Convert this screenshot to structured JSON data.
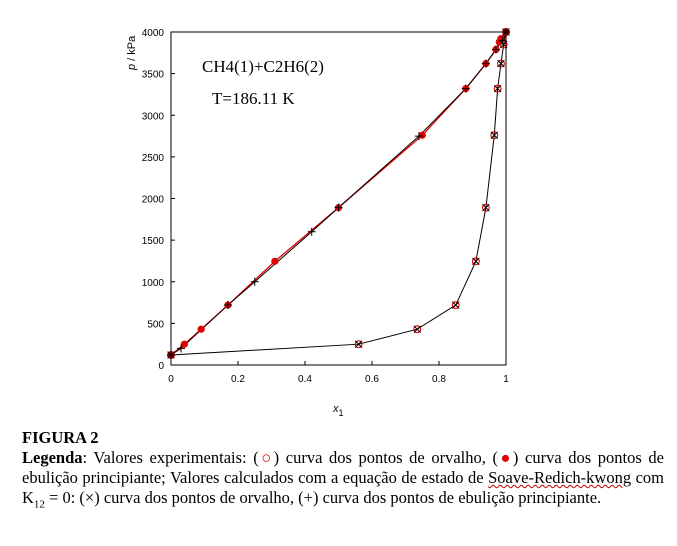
{
  "chart_data": {
    "type": "scatter",
    "annotations": [
      "CH4(1)+C2H6(2)",
      "T=186.11 K"
    ],
    "xlabel": "x1",
    "ylabel": "p / kPa",
    "xlim": [
      0,
      1
    ],
    "ylim": [
      0,
      4000
    ],
    "xticks": [
      "0",
      "0.2",
      "0.4",
      "0.6",
      "0.8",
      "1"
    ],
    "yticks": [
      "0",
      "500",
      "1000",
      "1500",
      "2000",
      "2500",
      "3000",
      "3500",
      "4000"
    ],
    "grid": false,
    "series": [
      {
        "marker": "open-circle",
        "points": [
          [
            0.0,
            120
          ],
          [
            0.56,
            250
          ],
          [
            0.735,
            430
          ],
          [
            0.85,
            720
          ],
          [
            0.91,
            1245
          ],
          [
            0.94,
            1890
          ],
          [
            0.965,
            2760
          ],
          [
            0.975,
            3320
          ],
          [
            0.985,
            3620
          ],
          [
            0.993,
            3850
          ],
          [
            1.0,
            4000
          ]
        ]
      },
      {
        "marker": "filled-dot",
        "points": [
          [
            0.0,
            120
          ],
          [
            0.04,
            250
          ],
          [
            0.09,
            430
          ],
          [
            0.17,
            720
          ],
          [
            0.31,
            1245
          ],
          [
            0.5,
            1890
          ],
          [
            0.75,
            2760
          ],
          [
            0.88,
            3320
          ],
          [
            0.94,
            3620
          ],
          [
            0.97,
            3790
          ],
          [
            0.98,
            3880
          ],
          [
            0.985,
            3920
          ],
          [
            1.0,
            4000
          ]
        ]
      },
      {
        "marker": "x",
        "line": true,
        "line_color": "#000000",
        "points": [
          [
            0.0,
            120
          ],
          [
            0.56,
            250
          ],
          [
            0.735,
            430
          ],
          [
            0.85,
            720
          ],
          [
            0.91,
            1245
          ],
          [
            0.94,
            1890
          ],
          [
            0.965,
            2760
          ],
          [
            0.975,
            3320
          ],
          [
            0.985,
            3620
          ],
          [
            0.993,
            3850
          ],
          [
            1.0,
            4000
          ]
        ]
      },
      {
        "marker": "plus",
        "line": true,
        "line_color": "#000000",
        "points": [
          [
            0.0,
            120
          ],
          [
            0.03,
            200
          ],
          [
            0.17,
            720
          ],
          [
            0.25,
            1000
          ],
          [
            0.42,
            1600
          ],
          [
            0.5,
            1890
          ],
          [
            0.74,
            2750
          ],
          [
            0.88,
            3320
          ],
          [
            0.94,
            3620
          ],
          [
            0.97,
            3790
          ],
          [
            0.99,
            3900
          ],
          [
            1.0,
            4000
          ]
        ]
      }
    ],
    "colors": {
      "experimental": "#e00000",
      "calculated": "#000000"
    }
  },
  "caption": {
    "figure_label": "FIGURA 2",
    "legend_label": "Legenda",
    "text_1": ": Valores experimentais: (",
    "sym_open_circle": "○",
    "text_2": ") curva dos pontos de orvalho, (",
    "sym_dot": "●",
    "text_3": ") curva dos pontos de ebulição principiante; Valores calculados com a equação de estado de ",
    "squiggle_text": "Soave-Redich-kwong",
    "text_4": " com K",
    "k_sub": "12",
    "text_5": " = 0: (×) curva dos pontos de orvalho, (+) curva dos pontos de ebulição principiante."
  }
}
